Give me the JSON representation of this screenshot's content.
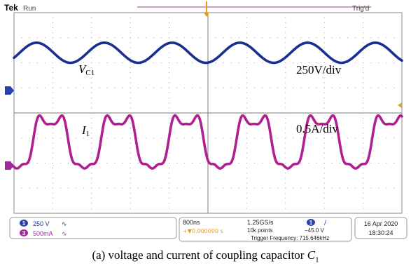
{
  "scope": {
    "brand": "Tek",
    "run_state": "Run",
    "trigger_state": "Trig'd",
    "colors": {
      "ch1": "#1a2f8f",
      "ch3": "#b0208f",
      "grid": "#9a9a9a",
      "ch1_badge": "#2a3fb0",
      "ch3_badge": "#a0289a",
      "trigger_marker": "#e89a20"
    },
    "graticule": {
      "divisions_x": 10,
      "divisions_y": 8
    },
    "annotations": {
      "ch1_symbol": "V",
      "ch1_subscript": "C1",
      "ch1_scale": "250V/div",
      "ch3_symbol": "I",
      "ch3_subscript": "1",
      "ch3_scale": "0.5A/div"
    },
    "status": {
      "ch1_number": "1",
      "ch1_scale": "250 V",
      "ch3_number": "3",
      "ch3_scale": "500mA",
      "bandwidth_glyph": "∿",
      "timebase": "800ns",
      "delay": "+▼0.000000 s",
      "sample_rate": "1.25GS/s",
      "record_length": "10k points",
      "trigger_source": "1",
      "trigger_slope": "∕",
      "trigger_level": "−45.0 V",
      "trigger_frequency": "Trigger Frequency: 715.646kHz",
      "date": "16 Apr  2020",
      "time": "18:30:24"
    }
  },
  "caption": {
    "prefix": "(a) voltage and current of coupling capacitor ",
    "symbol": "C",
    "subscript": "1"
  },
  "chart_data": {
    "type": "line",
    "title": "",
    "xlabel": "",
    "ylabel": "",
    "time_per_div_ns": 800,
    "x_divisions": 10,
    "series": [
      {
        "name": "V_C1",
        "units": "V",
        "scale_per_div": 250,
        "shape": "sinusoid",
        "frequency_khz": 715.646,
        "amplitude_div": 0.4,
        "center_div": 2.4,
        "phase_deg": 30,
        "trace_thickness_div": 0.1
      },
      {
        "name": "I_1",
        "units": "A",
        "scale_per_div": 0.5,
        "shape": "distorted periodic (flat-topped)",
        "frequency_khz": 715.646,
        "peak_div": 1.37,
        "trough_div": -1.23,
        "center_div": -1.2,
        "phase_deg": 105,
        "trace_thickness_div": 0.1
      }
    ]
  }
}
